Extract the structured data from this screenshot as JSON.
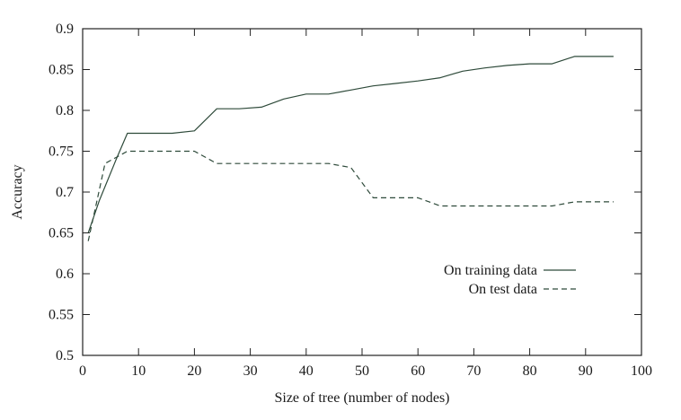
{
  "chart_data": {
    "type": "line",
    "title": "",
    "xlabel": "Size of tree (number of nodes)",
    "ylabel": "Accuracy",
    "xlim": [
      0,
      100
    ],
    "ylim": [
      0.5,
      0.9
    ],
    "xticks": [
      0,
      10,
      20,
      30,
      40,
      50,
      60,
      70,
      80,
      90,
      100
    ],
    "xtick_labels": [
      "0",
      "10",
      "20",
      "30",
      "40",
      "50",
      "60",
      "70",
      "80",
      "90",
      "100"
    ],
    "yticks": [
      0.5,
      0.55,
      0.6,
      0.65,
      0.7,
      0.75,
      0.8,
      0.85,
      0.9
    ],
    "ytick_labels": [
      "0.5",
      "0.55",
      "0.6",
      "0.65",
      "0.7",
      "0.75",
      "0.8",
      "0.85",
      "0.9"
    ],
    "grid": false,
    "legend_position": "center-right",
    "series": [
      {
        "name": "On training data",
        "style": "solid",
        "color": "#2e4a3a",
        "x": [
          1,
          3,
          6,
          8,
          12,
          16,
          20,
          24,
          28,
          32,
          36,
          40,
          44,
          48,
          52,
          56,
          60,
          64,
          68,
          72,
          76,
          80,
          84,
          88,
          92,
          95
        ],
        "y": [
          0.65,
          0.69,
          0.74,
          0.772,
          0.772,
          0.772,
          0.775,
          0.802,
          0.802,
          0.804,
          0.814,
          0.82,
          0.82,
          0.825,
          0.83,
          0.833,
          0.836,
          0.84,
          0.848,
          0.852,
          0.855,
          0.857,
          0.857,
          0.866,
          0.866,
          0.866
        ]
      },
      {
        "name": "On test data",
        "style": "dashed",
        "color": "#2e4a3a",
        "x": [
          1,
          4,
          8,
          12,
          16,
          20,
          24,
          28,
          32,
          36,
          40,
          44,
          48,
          52,
          56,
          60,
          64,
          68,
          72,
          76,
          80,
          84,
          88,
          92,
          95
        ],
        "y": [
          0.64,
          0.735,
          0.75,
          0.75,
          0.75,
          0.75,
          0.735,
          0.735,
          0.735,
          0.735,
          0.735,
          0.735,
          0.73,
          0.693,
          0.693,
          0.693,
          0.683,
          0.683,
          0.683,
          0.683,
          0.683,
          0.683,
          0.688,
          0.688,
          0.688
        ]
      }
    ]
  }
}
